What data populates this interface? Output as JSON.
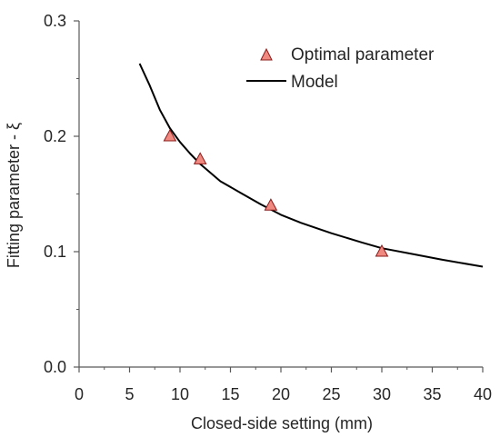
{
  "chart_data": {
    "type": "scatter",
    "title": "",
    "xlabel": "Closed-side setting (mm)",
    "ylabel": "Fitting parameter - ξ",
    "xlim": [
      0,
      40
    ],
    "ylim": [
      0,
      0.3
    ],
    "xticks": [
      "0",
      "5",
      "10",
      "15",
      "20",
      "25",
      "30",
      "35",
      "40"
    ],
    "yticks": [
      "0.0",
      "0.1",
      "0.2",
      "0.3"
    ],
    "legend_position": "top-right",
    "grid": false,
    "series": [
      {
        "name": "Optimal parameter",
        "kind": "scatter",
        "marker": "triangle",
        "color": "#f08a80",
        "edge_color": "#8b1a1a",
        "points": [
          {
            "x": 9,
            "y": 0.2
          },
          {
            "x": 12,
            "y": 0.18
          },
          {
            "x": 19,
            "y": 0.14
          },
          {
            "x": 30,
            "y": 0.1
          }
        ]
      },
      {
        "name": "Model",
        "kind": "line",
        "color": "#000000",
        "points": [
          {
            "x": 6,
            "y": 0.263
          },
          {
            "x": 7,
            "y": 0.244
          },
          {
            "x": 8,
            "y": 0.223
          },
          {
            "x": 9,
            "y": 0.207
          },
          {
            "x": 10,
            "y": 0.195
          },
          {
            "x": 11,
            "y": 0.185
          },
          {
            "x": 12,
            "y": 0.176
          },
          {
            "x": 14,
            "y": 0.161
          },
          {
            "x": 16,
            "y": 0.151
          },
          {
            "x": 18,
            "y": 0.141
          },
          {
            "x": 20,
            "y": 0.132
          },
          {
            "x": 22,
            "y": 0.125
          },
          {
            "x": 25,
            "y": 0.116
          },
          {
            "x": 28,
            "y": 0.108
          },
          {
            "x": 30,
            "y": 0.103
          },
          {
            "x": 33,
            "y": 0.098
          },
          {
            "x": 36,
            "y": 0.093
          },
          {
            "x": 40,
            "y": 0.087
          }
        ]
      }
    ]
  }
}
